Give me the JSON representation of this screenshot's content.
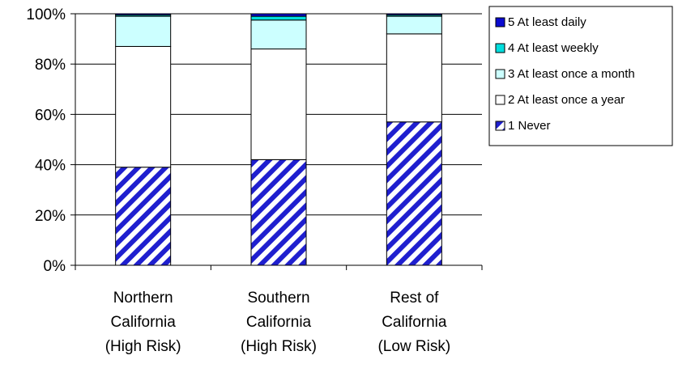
{
  "chart_data": {
    "type": "bar",
    "stacked": true,
    "percent": true,
    "categories": [
      [
        "Northern",
        "California",
        "(High Risk)"
      ],
      [
        "Southern",
        "California",
        "(High Risk)"
      ],
      [
        "Rest of",
        "California",
        "(Low Risk)"
      ]
    ],
    "series": [
      {
        "name": "1 Never",
        "values": [
          39,
          42,
          57
        ],
        "color": "#1f1fcf",
        "pattern": "diagonal-stripes"
      },
      {
        "name": "2 At least once a year",
        "values": [
          48,
          44,
          35
        ],
        "color": "#ffffff"
      },
      {
        "name": "3 At least once a month",
        "values": [
          12,
          11.5,
          7
        ],
        "color": "#ccffff"
      },
      {
        "name": "4 At least weekly",
        "values": [
          0.5,
          1.5,
          0.5
        ],
        "color": "#00dede"
      },
      {
        "name": "5 At least daily",
        "values": [
          0.5,
          1,
          0.5
        ],
        "color": "#0a0ad0"
      }
    ],
    "legend_order": [
      "5 At least daily",
      "4 At least weekly",
      "3 At least once a month",
      "2 At least once a year",
      "1 Never"
    ],
    "ylim": [
      0,
      100
    ],
    "yticks": [
      "0%",
      "20%",
      "40%",
      "60%",
      "80%",
      "100%"
    ],
    "grid": true,
    "legend_position": "right",
    "xlabel": "",
    "ylabel": "",
    "title": ""
  }
}
